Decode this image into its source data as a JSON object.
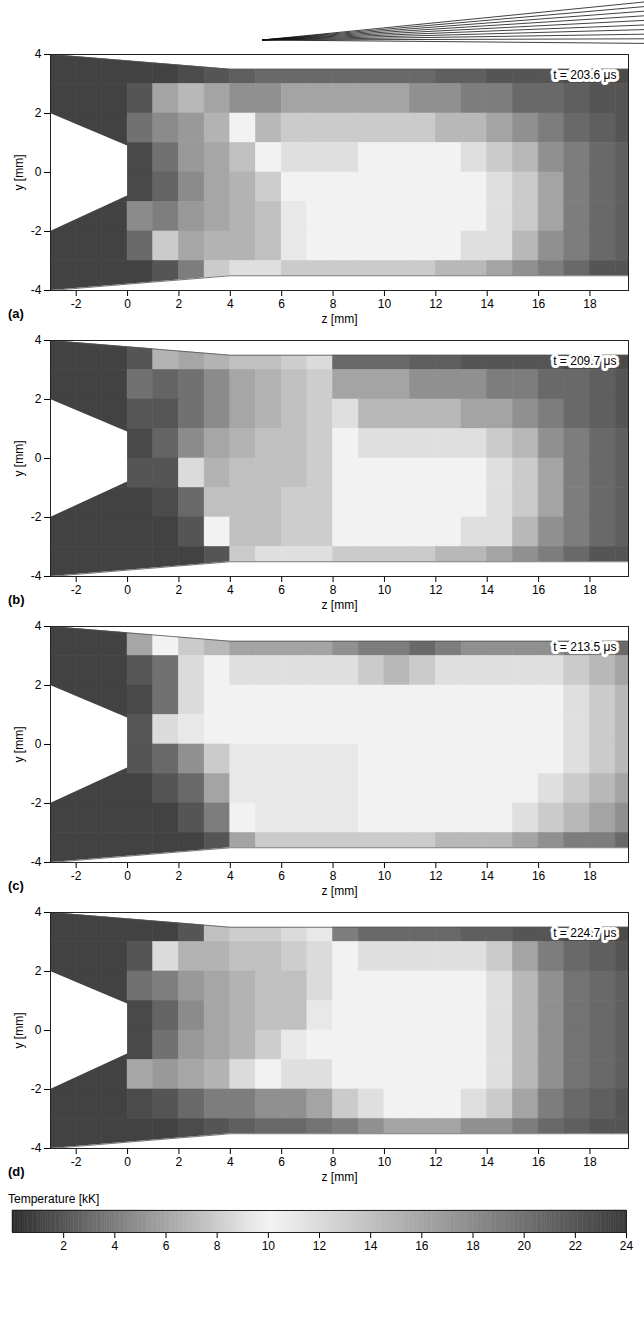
{
  "chart_data": [
    {
      "type": "heatmap",
      "panel": "(a)",
      "time_label": "t = 203.6 μs",
      "x_label": "z [mm]",
      "y_label": "y [mm]",
      "xlim": [
        -3,
        19.5
      ],
      "xticks": [
        -2,
        0,
        2,
        4,
        6,
        8,
        10,
        12,
        14,
        16,
        18
      ],
      "ylim": [
        -4,
        4
      ],
      "yticks": [
        -4,
        -2,
        0,
        2,
        4
      ],
      "z": [
        -2.5,
        -1.5,
        -0.5,
        0.5,
        1.5,
        2.5,
        3.5,
        4.5,
        5.5,
        6.5,
        7.5,
        8.5,
        9.5,
        10.5,
        11.5,
        12.5,
        13.5,
        14.5,
        15.5,
        16.5,
        17.5,
        18.5,
        19.5
      ],
      "y": [
        3.5,
        2.5,
        1.5,
        0.5,
        -0.5,
        -1.5,
        -2.5,
        -3.5
      ],
      "temperature": [
        [
          1,
          1,
          1,
          1,
          1,
          1.5,
          2,
          2.5,
          3,
          3,
          3,
          3,
          3,
          3,
          3,
          2.5,
          2.5,
          2,
          2,
          2,
          1.5,
          1.5,
          1.5
        ],
        [
          1,
          1,
          1,
          2,
          6,
          7,
          6,
          5,
          5,
          6,
          6,
          6,
          6,
          6,
          5,
          5,
          4,
          4,
          3,
          3,
          2.5,
          2,
          2
        ],
        [
          1,
          1,
          1,
          20,
          18,
          17,
          15,
          10,
          7,
          8,
          8,
          8,
          8,
          8,
          8,
          7,
          7,
          6,
          5,
          4,
          3,
          2.5,
          2
        ],
        [
          1,
          1,
          1,
          23,
          20,
          17,
          16,
          14,
          10,
          9,
          9,
          9,
          10,
          10,
          10,
          10,
          9,
          8,
          7,
          5,
          4,
          3,
          2.5
        ],
        [
          1,
          1,
          1,
          23,
          21,
          18,
          16,
          15,
          13,
          10,
          10,
          10,
          10,
          10,
          10,
          10,
          10,
          9,
          8,
          6,
          4,
          3,
          2.5
        ],
        [
          1,
          1,
          1,
          18,
          19,
          17,
          16,
          15,
          14,
          11,
          10,
          10,
          10,
          10,
          10,
          10,
          10,
          9,
          8,
          6,
          4,
          3,
          2.5
        ],
        [
          1,
          1,
          1,
          3,
          8,
          16,
          15,
          15,
          14,
          11,
          10,
          10,
          10,
          10,
          10,
          10,
          9,
          9,
          7,
          5,
          4,
          3,
          2.5
        ],
        [
          1,
          1,
          1,
          1,
          2,
          4,
          8,
          9,
          9,
          8,
          8,
          8,
          8,
          8,
          8,
          7,
          7,
          6,
          5,
          4,
          3,
          2,
          2
        ]
      ]
    },
    {
      "type": "heatmap",
      "panel": "(b)",
      "time_label": "t = 209.7 μs",
      "x_label": "z [mm]",
      "y_label": "y [mm]",
      "xlim": [
        -3,
        19.5
      ],
      "xticks": [
        -2,
        0,
        2,
        4,
        6,
        8,
        10,
        12,
        14,
        16,
        18
      ],
      "ylim": [
        -4,
        4
      ],
      "yticks": [
        -4,
        -2,
        0,
        2,
        4
      ],
      "z": [
        -2.5,
        -1.5,
        -0.5,
        0.5,
        1.5,
        2.5,
        3.5,
        4.5,
        5.5,
        6.5,
        7.5,
        8.5,
        9.5,
        10.5,
        11.5,
        12.5,
        13.5,
        14.5,
        15.5,
        16.5,
        17.5,
        18.5,
        19.5
      ],
      "y": [
        3.5,
        2.5,
        1.5,
        0.5,
        -0.5,
        -1.5,
        -2.5,
        -3.5
      ],
      "temperature": [
        [
          1,
          1,
          1,
          2,
          15,
          16,
          15,
          14,
          14,
          13,
          12,
          3,
          3,
          3,
          2.5,
          2.5,
          2,
          2,
          2,
          2,
          1.5,
          1.5,
          1.5
        ],
        [
          1,
          1,
          1,
          20,
          21,
          20,
          18,
          16,
          15,
          14,
          13,
          6,
          6,
          6,
          5,
          5,
          5,
          4,
          4,
          3,
          3,
          2.5,
          2
        ],
        [
          1,
          1,
          1,
          22,
          22,
          20,
          18,
          16,
          15,
          14,
          13,
          9,
          7,
          7,
          7,
          7,
          6,
          6,
          5,
          4,
          3,
          2.5,
          2
        ],
        [
          1,
          1,
          1,
          23,
          21,
          18,
          16,
          15,
          14,
          14,
          13,
          10,
          9,
          9,
          9,
          9,
          9,
          8,
          7,
          5,
          4,
          3,
          2.5
        ],
        [
          1,
          1,
          1,
          2,
          2,
          12,
          15,
          14,
          14,
          14,
          13,
          10,
          10,
          10,
          10,
          10,
          10,
          9,
          8,
          6,
          4,
          3,
          2.5
        ],
        [
          1,
          1,
          1,
          1,
          1.5,
          3,
          14,
          14,
          14,
          13,
          13,
          10,
          10,
          10,
          10,
          10,
          10,
          9,
          8,
          6,
          4,
          3,
          2.5
        ],
        [
          1,
          1,
          1,
          1,
          1,
          2,
          10,
          14,
          14,
          13,
          13,
          10,
          10,
          10,
          10,
          10,
          9,
          9,
          7,
          5,
          4,
          3,
          2.5
        ],
        [
          1,
          1,
          1,
          1,
          1,
          1,
          2,
          8,
          9,
          9,
          9,
          8,
          8,
          8,
          8,
          7,
          7,
          6,
          5,
          4,
          3,
          2,
          2
        ]
      ]
    },
    {
      "type": "heatmap",
      "panel": "(c)",
      "time_label": "t = 213.5 μs",
      "x_label": "z [mm]",
      "y_label": "y [mm]",
      "xlim": [
        -3,
        19.5
      ],
      "xticks": [
        -2,
        0,
        2,
        4,
        6,
        8,
        10,
        12,
        14,
        16,
        18
      ],
      "ylim": [
        -4,
        4
      ],
      "yticks": [
        -4,
        -2,
        0,
        2,
        4
      ],
      "z": [
        -2.5,
        -1.5,
        -0.5,
        0.5,
        1.5,
        2.5,
        3.5,
        4.5,
        5.5,
        6.5,
        7.5,
        8.5,
        9.5,
        10.5,
        11.5,
        12.5,
        13.5,
        14.5,
        15.5,
        16.5,
        17.5,
        18.5,
        19.5
      ],
      "y": [
        3.5,
        2.5,
        1.5,
        0.5,
        -0.5,
        -1.5,
        -2.5,
        -3.5
      ],
      "temperature": [
        [
          1,
          1,
          1,
          16,
          10,
          8,
          7,
          6,
          6,
          6,
          6,
          5,
          4,
          4,
          3,
          4,
          5,
          5,
          5,
          5,
          4,
          4,
          3
        ],
        [
          1,
          1,
          1,
          22,
          20,
          12,
          10,
          9,
          9,
          9,
          9,
          9,
          8,
          7,
          8,
          9,
          9,
          9,
          9,
          9,
          8,
          7,
          6
        ],
        [
          1,
          1,
          1,
          23,
          20,
          12,
          10,
          10,
          10,
          10,
          10,
          10,
          10,
          10,
          10,
          10,
          10,
          10,
          10,
          10,
          9,
          8,
          7
        ],
        [
          1,
          1,
          1,
          22,
          12,
          11,
          10,
          10,
          10,
          10,
          10,
          10,
          10,
          10,
          10,
          10,
          10,
          10,
          10,
          10,
          9,
          8,
          7
        ],
        [
          1,
          1,
          1,
          2,
          3,
          5,
          8,
          11,
          11,
          11,
          11,
          11,
          10,
          10,
          10,
          10,
          10,
          10,
          10,
          10,
          9,
          8,
          7
        ],
        [
          1,
          1,
          1,
          1,
          2,
          3,
          6,
          11,
          11,
          11,
          11,
          11,
          10,
          10,
          10,
          10,
          10,
          10,
          10,
          9,
          8,
          7,
          6
        ],
        [
          1,
          1,
          1,
          1,
          1,
          2,
          4,
          10,
          11,
          11,
          11,
          11,
          10,
          10,
          10,
          10,
          10,
          10,
          9,
          8,
          7,
          6,
          5
        ],
        [
          1,
          1,
          1,
          1,
          1,
          1,
          2,
          6,
          8,
          8,
          8,
          8,
          8,
          8,
          8,
          7,
          7,
          7,
          6,
          5,
          4,
          4,
          3
        ]
      ]
    },
    {
      "type": "heatmap",
      "panel": "(d)",
      "time_label": "t = 224.7 μs",
      "x_label": "z [mm]",
      "y_label": "y [mm]",
      "xlim": [
        -3,
        19.5
      ],
      "xticks": [
        -2,
        0,
        2,
        4,
        6,
        8,
        10,
        12,
        14,
        16,
        18
      ],
      "ylim": [
        -4,
        4
      ],
      "yticks": [
        -4,
        -2,
        0,
        2,
        4
      ],
      "z": [
        -2.5,
        -1.5,
        -0.5,
        0.5,
        1.5,
        2.5,
        3.5,
        4.5,
        5.5,
        6.5,
        7.5,
        8.5,
        9.5,
        10.5,
        11.5,
        12.5,
        13.5,
        14.5,
        15.5,
        16.5,
        17.5,
        18.5,
        19.5
      ],
      "y": [
        3.5,
        2.5,
        1.5,
        0.5,
        -0.5,
        -1.5,
        -2.5,
        -3.5
      ],
      "temperature": [
        [
          1,
          1,
          1,
          1,
          1,
          2,
          14,
          13,
          13,
          12,
          11,
          4,
          3,
          3,
          3,
          3,
          2.5,
          2.5,
          2,
          2,
          1.5,
          1.5,
          1.5
        ],
        [
          1,
          1,
          1,
          2,
          12,
          15,
          15,
          14,
          14,
          13,
          12,
          10,
          9,
          9,
          9,
          9,
          9,
          8,
          6,
          4,
          3,
          2.5,
          2
        ],
        [
          1,
          1,
          1,
          20,
          19,
          17,
          16,
          15,
          14,
          14,
          12,
          10,
          10,
          10,
          10,
          10,
          10,
          9,
          7,
          5,
          3.5,
          3,
          2.5
        ],
        [
          1,
          1,
          1,
          23,
          21,
          18,
          16,
          15,
          14,
          14,
          11,
          10,
          10,
          10,
          10,
          10,
          10,
          9,
          7,
          5,
          3.5,
          3,
          2.5
        ],
        [
          1,
          1,
          1,
          23,
          20,
          17,
          16,
          15,
          13,
          11,
          10,
          10,
          10,
          10,
          10,
          10,
          10,
          9,
          7,
          5,
          3.5,
          3,
          2.5
        ],
        [
          1,
          1,
          1,
          16,
          17,
          16,
          15,
          12,
          10,
          9,
          9,
          10,
          10,
          10,
          10,
          10,
          10,
          9,
          7,
          5,
          3.5,
          3,
          2.5
        ],
        [
          1,
          1,
          1,
          1.5,
          2,
          3,
          4,
          4,
          5,
          5,
          6,
          8,
          9,
          10,
          10,
          10,
          9,
          8,
          6,
          4,
          3,
          2.5,
          2
        ],
        [
          1,
          1,
          1,
          1,
          1,
          1.5,
          2,
          2.5,
          3,
          3,
          3.5,
          4,
          5,
          6,
          6,
          6,
          5,
          5,
          4,
          3,
          2.5,
          2,
          2
        ]
      ]
    }
  ],
  "colorbar": {
    "label": "Temperature [kK]",
    "range": [
      0,
      24
    ],
    "ticks": [
      2,
      4,
      6,
      8,
      10,
      12,
      14,
      16,
      18,
      20,
      22,
      24
    ]
  },
  "geometry": {
    "top_wall": {
      "z": [
        -3,
        4,
        19.5
      ],
      "y": [
        4,
        3.5,
        3.5
      ]
    },
    "bottom_wall": {
      "z": [
        -3,
        4,
        19.5
      ],
      "y": [
        -4,
        -3.5,
        -3.5
      ]
    },
    "electrode": {
      "z": [
        -3,
        0
      ],
      "y_lower": [
        -2,
        -0.8
      ],
      "y_upper": [
        2,
        0.9
      ]
    }
  }
}
